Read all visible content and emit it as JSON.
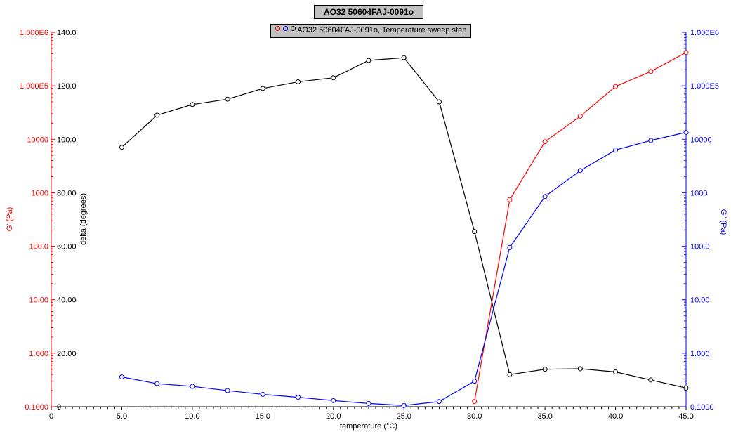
{
  "title": "AO32 50604FAJ-0091o",
  "legend": {
    "label": "AO32 50604FAJ-0091o, Temperature sweep step"
  },
  "colors": {
    "g_prime": "#ff0000",
    "g_double_prime": "#0000ff",
    "delta": "#000000"
  },
  "chart_data": {
    "type": "line",
    "xlabel": "temperature (°C)",
    "ylabel_left": "G' (Pa)",
    "ylabel_delta": "delta (degrees)",
    "ylabel_right": "G'' (Pa)",
    "xlim": [
      0,
      45
    ],
    "x_ticks": [
      0,
      5,
      10,
      15,
      20,
      25,
      30,
      35,
      40,
      45
    ],
    "x_tick_labels": [
      "0",
      "5.0",
      "10.0",
      "15.0",
      "20.0",
      "25.0",
      "30.0",
      "35.0",
      "40.0",
      "45.0"
    ],
    "left_axis": {
      "scale": "log",
      "ylim": [
        0.1,
        1000000
      ],
      "tick_values": [
        0.1,
        1,
        10,
        100,
        1000,
        10000,
        100000,
        1000000
      ],
      "tick_labels": [
        "0.1000",
        "1.000",
        "10.00",
        "100.0",
        "1000",
        "10000",
        "1.000E5",
        "1.000E6"
      ]
    },
    "right_axis": {
      "scale": "log",
      "ylim": [
        0.1,
        1000000
      ],
      "tick_values": [
        0.1,
        1,
        10,
        100,
        1000,
        10000,
        100000,
        1000000
      ],
      "tick_labels": [
        "0.1000",
        "1.000",
        "10.00",
        "100.0",
        "1000",
        "10000",
        "1.000E5",
        "1.000E6"
      ]
    },
    "delta_axis": {
      "scale": "linear",
      "ylim": [
        0,
        140
      ],
      "tick_values": [
        0,
        20,
        40,
        60,
        80,
        100,
        120,
        140
      ],
      "tick_labels": [
        "0",
        "20.00",
        "40.00",
        "60.00",
        "80.00",
        "100.0",
        "120.0",
        "140.0"
      ]
    },
    "series": [
      {
        "name": "G'",
        "axis": "left",
        "color": "#ff0000",
        "x": [
          30.0,
          32.5,
          35.0,
          37.5,
          40.0,
          42.5,
          45.0
        ],
        "y": [
          0.125,
          740,
          9000,
          27000,
          97000,
          185000,
          420000
        ]
      },
      {
        "name": "G''",
        "axis": "right",
        "color": "#0000ff",
        "x": [
          5.0,
          7.5,
          10.0,
          12.5,
          15.0,
          17.5,
          20.0,
          22.5,
          25.0,
          27.5,
          30.0,
          32.5,
          35.0,
          37.5,
          40.0,
          42.5,
          45.0
        ],
        "y": [
          0.36,
          0.27,
          0.24,
          0.2,
          0.17,
          0.15,
          0.13,
          0.115,
          0.105,
          0.125,
          0.3,
          95,
          850,
          2600,
          6300,
          9500,
          13500
        ]
      },
      {
        "name": "delta",
        "axis": "delta",
        "color": "#000000",
        "x": [
          5.0,
          7.5,
          10.0,
          12.5,
          15.0,
          17.5,
          20.0,
          22.5,
          25.0,
          27.5,
          30.0,
          32.5,
          35.0,
          37.5,
          40.0,
          42.5,
          45.0
        ],
        "y": [
          97.0,
          109.0,
          113.0,
          115.0,
          119.0,
          121.5,
          123.0,
          129.5,
          130.5,
          114.0,
          65.5,
          12.0,
          14.0,
          14.2,
          13.0,
          10.0,
          7.0
        ]
      }
    ]
  }
}
